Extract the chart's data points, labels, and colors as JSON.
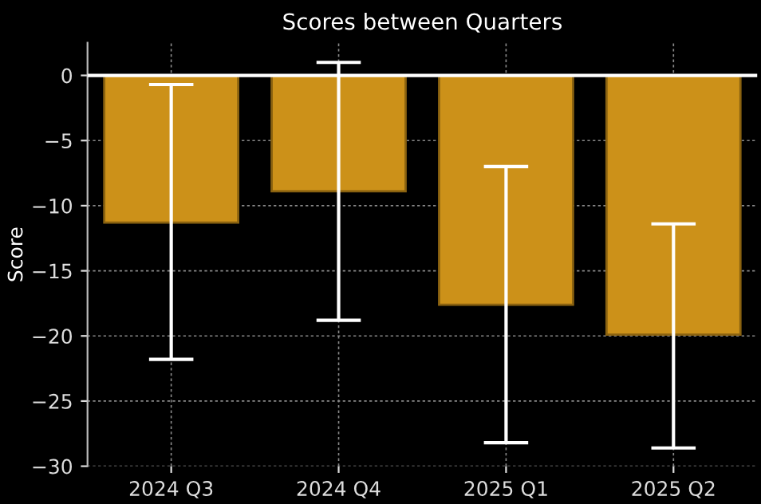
{
  "chart_data": {
    "type": "bar",
    "title": "Scores between Quarters",
    "ylabel": "Score",
    "categories": [
      "2024 Q3",
      "2024 Q4",
      "2025 Q1",
      "2025 Q2"
    ],
    "values": [
      -11.3,
      -8.9,
      -17.6,
      -19.9
    ],
    "errors": [
      [
        -21.8,
        -0.7
      ],
      [
        -18.8,
        1.0
      ],
      [
        -28.2,
        -7.0
      ],
      [
        -28.6,
        -11.4
      ]
    ],
    "color": "#cc9119",
    "ylim": [
      -30,
      2.5
    ],
    "yticks": [
      0,
      -5,
      -10,
      -15,
      -20,
      -25,
      -30
    ],
    "ref_lines": [
      {
        "axis": "y",
        "value": 0,
        "color": "#ffffff"
      }
    ],
    "grid": true
  }
}
